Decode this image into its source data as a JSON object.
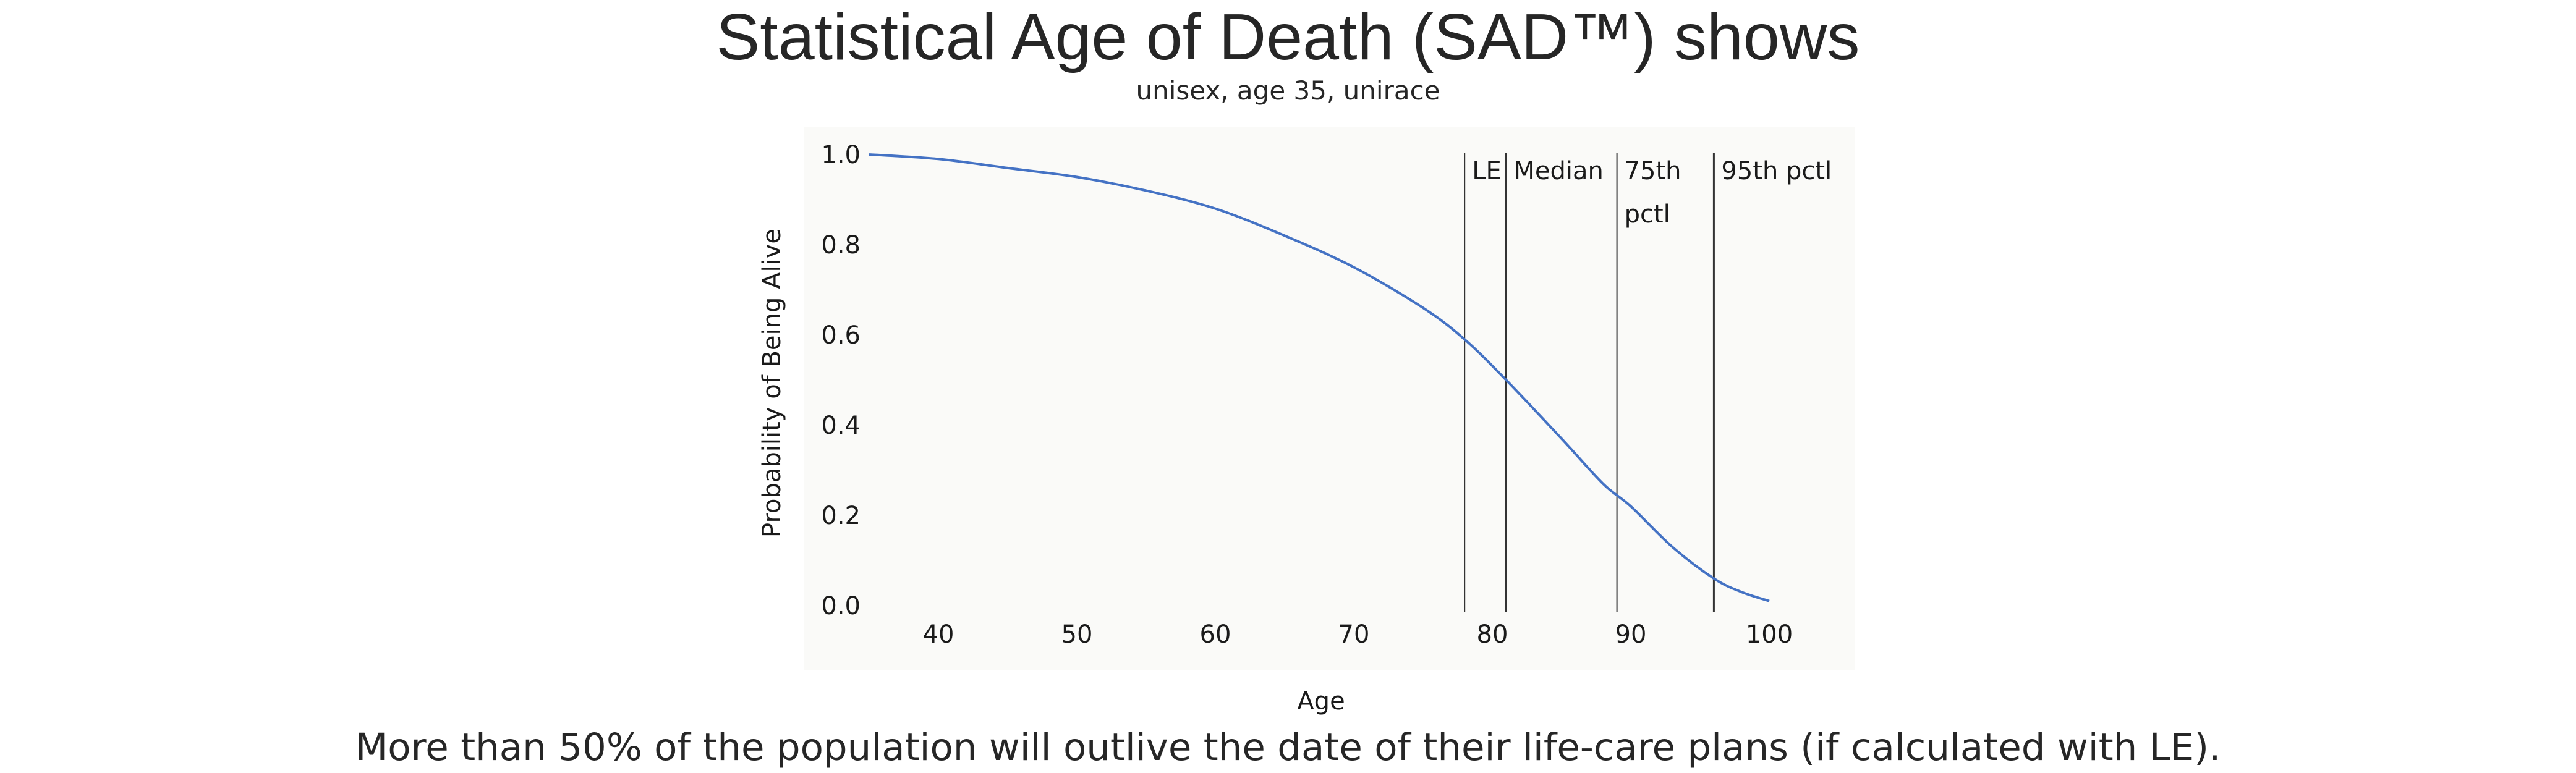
{
  "header": {
    "title": "Statistical Age of Death (SAD™) shows",
    "subtitle": "unisex, age 35, unirace"
  },
  "footer": {
    "note": "More than 50% of the population will outlive the date of their life-care plans (if calculated with LE)."
  },
  "colors": {
    "curve": "#4472C4",
    "plot_bg": "#FAFAF8",
    "marker_line": "#333333"
  },
  "chart_data": {
    "type": "line",
    "title": "",
    "xlabel": "Age",
    "ylabel": "Probability of Being Alive",
    "xlim": [
      35,
      102
    ],
    "ylim": [
      0,
      1.0
    ],
    "grid": false,
    "x_ticks": [
      "40",
      "50",
      "60",
      "70",
      "80",
      "90",
      "100"
    ],
    "y_ticks": [
      "0.0",
      "0.2",
      "0.4",
      "0.6",
      "0.8",
      "1.0"
    ],
    "series": [
      {
        "x": [
          35,
          40,
          45,
          50,
          55,
          60,
          65,
          70,
          75,
          78,
          81,
          85,
          88,
          90,
          93,
          96,
          98,
          100
        ],
        "y": [
          1.0,
          0.99,
          0.97,
          0.95,
          0.92,
          0.88,
          0.82,
          0.75,
          0.66,
          0.59,
          0.5,
          0.37,
          0.27,
          0.22,
          0.13,
          0.06,
          0.03,
          0.01
        ]
      }
    ],
    "markers": [
      {
        "label_lines": [
          "LE"
        ],
        "x": 78
      },
      {
        "label_lines": [
          "Median"
        ],
        "x": 81
      },
      {
        "label_lines": [
          "75th",
          "pctl"
        ],
        "x": 89
      },
      {
        "label_lines": [
          "95th pctl"
        ],
        "x": 96
      }
    ]
  }
}
